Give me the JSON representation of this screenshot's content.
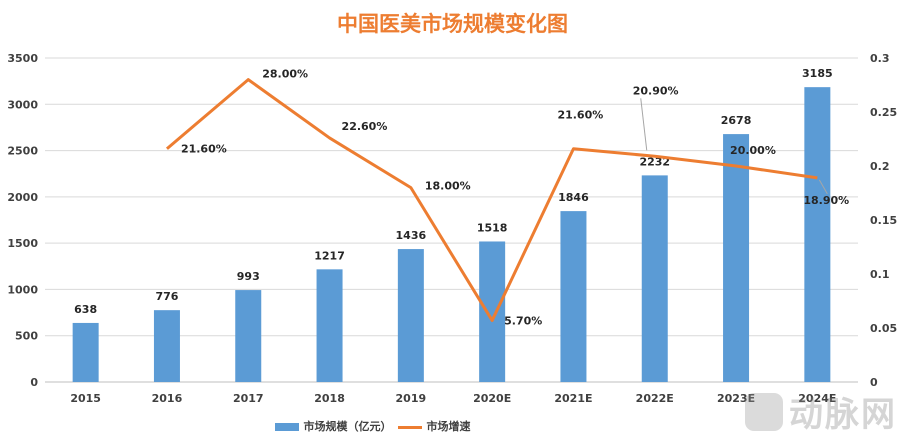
{
  "chart_data": {
    "type": "bar+line",
    "title": "中国医美市场规模变化图",
    "categories": [
      "2015",
      "2016",
      "2017",
      "2018",
      "2019",
      "2020E",
      "2021E",
      "2022E",
      "2023E",
      "2024E"
    ],
    "series": [
      {
        "name": "市场规模（亿元）",
        "type": "bar",
        "axis": "left",
        "color": "#5B9BD5",
        "values": [
          638,
          776,
          993,
          1217,
          1436,
          1518,
          1846,
          2232,
          2678,
          3185
        ],
        "labels": [
          "638",
          "776",
          "993",
          "1217",
          "1436",
          "1518",
          "1846",
          "2232",
          "2678",
          "3185"
        ]
      },
      {
        "name": "市场增速",
        "type": "line",
        "axis": "right",
        "color": "#ED7D31",
        "values": [
          null,
          0.216,
          0.28,
          0.226,
          0.18,
          0.057,
          0.216,
          0.209,
          0.2,
          0.189
        ],
        "labels": [
          "",
          "21.60%",
          "28.00%",
          "22.60%",
          "18.00%",
          "5.70%",
          "21.60%",
          "20.90%",
          "20.00%",
          "18.90%"
        ]
      }
    ],
    "y_left": {
      "range": [
        0,
        3500
      ],
      "ticks": [
        "0",
        "500",
        "1000",
        "1500",
        "2000",
        "2500",
        "3000",
        "3500"
      ]
    },
    "y_right": {
      "range": [
        0,
        0.3
      ],
      "ticks": [
        "0",
        "0.05",
        "0.1",
        "0.15",
        "0.2",
        "0.25",
        "0.3"
      ]
    },
    "grid": true,
    "legend": "bottom"
  },
  "watermark": "动脉网"
}
